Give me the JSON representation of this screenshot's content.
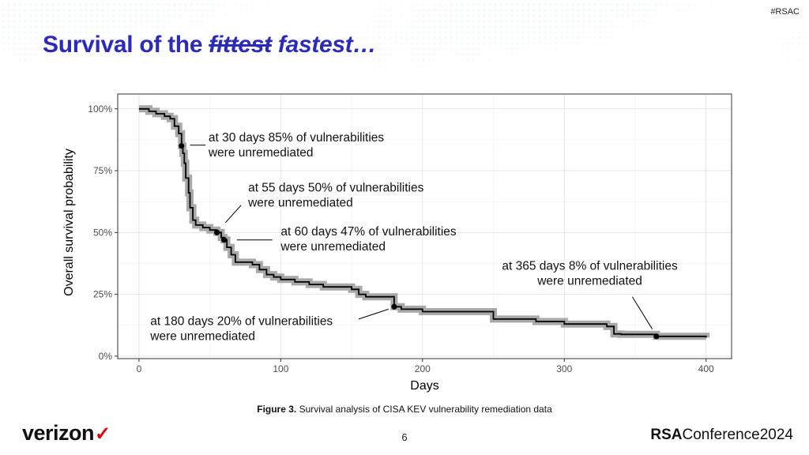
{
  "slide": {
    "hashtag": "#RSAC",
    "title_start": "Survival of the ",
    "title_struck": "fittest",
    "title_end": " fastest…",
    "caption_label": "Figure 3.",
    "caption_text": " Survival analysis of CISA KEV vulnerability remediation data",
    "page_number": "6",
    "verizon_logo": "verizon",
    "rsac_logo_bold": "RSA",
    "rsac_logo_rest": "Conference2024"
  },
  "chart_data": {
    "type": "line",
    "xlabel": "Days",
    "ylabel": "Overall survival probability",
    "xlim": [
      -15,
      418
    ],
    "ylim": [
      -1,
      106
    ],
    "xticks": [
      0,
      100,
      200,
      300,
      400
    ],
    "xtick_labels": [
      "0",
      "100",
      "200",
      "300",
      "400"
    ],
    "yticks": [
      0,
      25,
      50,
      75,
      100
    ],
    "ytick_labels": [
      "0%",
      "25%",
      "50%",
      "75%",
      "100%"
    ],
    "grid": true,
    "series": [
      {
        "x": [
          0,
          7,
          12,
          18,
          22,
          25,
          28,
          30,
          31,
          32,
          33,
          35,
          36,
          38,
          40,
          45,
          50,
          55,
          58,
          60,
          62,
          65,
          68,
          80,
          85,
          90,
          95,
          100,
          110,
          120,
          130,
          150,
          155,
          160,
          178,
          180,
          185,
          200,
          250,
          280,
          300,
          330,
          335,
          340,
          365,
          400
        ],
        "y": [
          100,
          99,
          98,
          97,
          96,
          93,
          90,
          85,
          82,
          78,
          72,
          66,
          60,
          55,
          53,
          52,
          51,
          50,
          48,
          47,
          44,
          41,
          38,
          37,
          35,
          33,
          32,
          31,
          30,
          29,
          28,
          27,
          25,
          24,
          24,
          20,
          19,
          18,
          15,
          14,
          13,
          12,
          9,
          8.8,
          8,
          7.5
        ]
      }
    ],
    "markers": [
      {
        "x": 30,
        "y": 85
      },
      {
        "x": 55,
        "y": 50
      },
      {
        "x": 60,
        "y": 47
      },
      {
        "x": 180,
        "y": 20
      },
      {
        "x": 365,
        "y": 8
      }
    ],
    "annotations": [
      {
        "line1": "at 30 days 85% of vulnerabilities",
        "line2": "were unremediated",
        "x": 49,
        "y": 86.8,
        "align": "start",
        "lx1": 36,
        "ly1": 85.3,
        "lx2": 47,
        "ly2": 85.3
      },
      {
        "line1": "at 55 days 50% of vulnerabilities",
        "line2": "were unremediated",
        "x": 77,
        "y": 66.6,
        "align": "start",
        "lx1": 61,
        "ly1": 54,
        "lx2": 72,
        "ly2": 61
      },
      {
        "line1": "at 60 days 47% of vulnerabilities",
        "line2": "were unremediated",
        "x": 100,
        "y": 48.8,
        "align": "start",
        "lx1": 69,
        "ly1": 47,
        "lx2": 94,
        "ly2": 47
      },
      {
        "line1": "at 365 days 8% of vulnerabilities",
        "line2": "were unremediated",
        "x": 318,
        "y": 35,
        "align": "middle",
        "lx1": 348,
        "ly1": 24,
        "lx2": 362,
        "ly2": 11
      },
      {
        "line1": "at 180 days 20% of vulnerabilities",
        "line2": "were unremediated",
        "x": 8,
        "y": 12.5,
        "align": "start",
        "lx1": 155,
        "ly1": 15,
        "lx2": 176,
        "ly2": 19
      }
    ],
    "colors": {
      "line": "#000000",
      "band": "#9a9a9a",
      "grid": "#e6e6e6",
      "panel_border": "#333333"
    }
  }
}
